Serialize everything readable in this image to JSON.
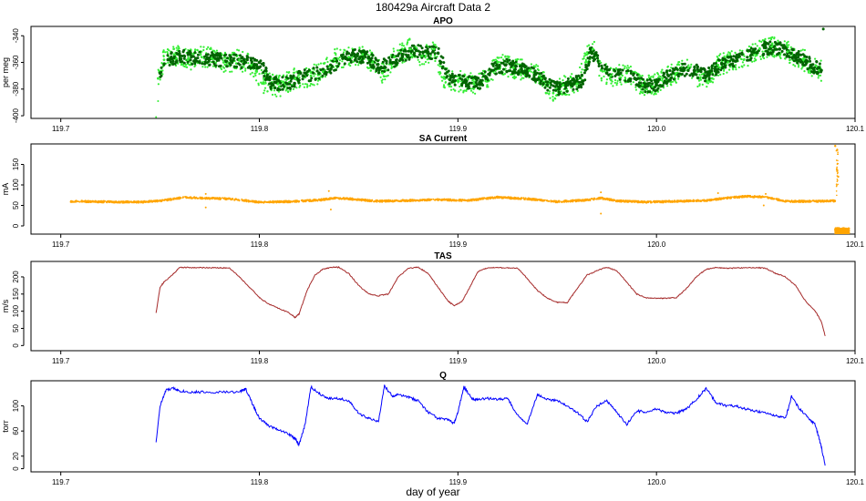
{
  "figure": {
    "title": "180429a   Aircraft Data 2",
    "xlabel": "day of year"
  },
  "colors": {
    "apo_light": "#33ee33",
    "apo_dark": "#006400",
    "sa": "#ffa500",
    "tas": "#a52a2a",
    "q": "#0000ff"
  },
  "chart_data": [
    {
      "type": "scatter",
      "title": "APO",
      "ylabel": "per meg",
      "xlim": [
        119.685,
        120.1
      ],
      "ylim": [
        -402,
        -333
      ],
      "xticks": [
        119.7,
        119.8,
        119.9,
        120.0,
        120.1
      ],
      "xtick_labels": [
        "119.7",
        "119.8",
        "119.9",
        "120.0",
        "120.1"
      ],
      "yticks": [
        -400,
        -380,
        -360,
        -340
      ],
      "ytick_labels": [
        "-400",
        "-380",
        "-360",
        "-340"
      ],
      "series": [
        {
          "role": "high-frequency",
          "x": [
            119.749,
            119.752,
            119.757,
            119.764,
            119.771,
            119.776,
            119.782,
            119.79,
            119.796,
            119.802,
            119.81,
            119.818,
            119.826,
            119.832,
            119.838,
            119.845,
            119.852,
            119.857,
            119.862,
            119.868,
            119.876,
            119.882,
            119.888,
            119.893,
            119.9,
            119.908,
            119.914,
            119.92,
            119.928,
            119.936,
            119.942,
            119.948,
            119.953,
            119.96,
            119.965,
            119.968,
            119.972,
            119.977,
            119.985,
            119.993,
            119.998,
            120.003,
            120.01,
            120.016,
            120.022,
            120.028,
            120.031,
            120.036,
            120.044,
            120.052,
            120.058,
            120.066,
            120.074,
            120.082
          ],
          "y": [
            -372,
            -358,
            -354,
            -358,
            -356,
            -357,
            -360,
            -358,
            -362,
            -375,
            -378,
            -372,
            -370,
            -367,
            -358,
            -356,
            -354,
            -360,
            -368,
            -356,
            -350,
            -355,
            -350,
            -372,
            -374,
            -376,
            -374,
            -360,
            -364,
            -366,
            -372,
            -383,
            -377,
            -376,
            -354,
            -350,
            -366,
            -370,
            -368,
            -377,
            -378,
            -372,
            -368,
            -364,
            -372,
            -372,
            -362,
            -360,
            -358,
            -350,
            -348,
            -352,
            -358,
            -366
          ]
        },
        {
          "role": "flask",
          "x": [
            119.75,
            119.754,
            119.76,
            119.768,
            119.774,
            119.779,
            119.786,
            119.793,
            119.8,
            119.806,
            119.814,
            119.822,
            119.83,
            119.836,
            119.842,
            119.848,
            119.855,
            119.86,
            119.866,
            119.872,
            119.879,
            119.885,
            119.89,
            119.896,
            119.904,
            119.911,
            119.917,
            119.924,
            119.932,
            119.939,
            119.945,
            119.951,
            119.957,
            119.963,
            119.967,
            119.975,
            119.981,
            119.989,
            119.995,
            120.0,
            120.006,
            120.013,
            120.019,
            120.025,
            120.033,
            120.04,
            120.048,
            120.055,
            120.062,
            120.07,
            120.078,
            120.083
          ],
          "y": [
            -368,
            -358,
            -355,
            -357,
            -357,
            -358,
            -359,
            -360,
            -360,
            -376,
            -376,
            -370,
            -368,
            -365,
            -357,
            -355,
            -356,
            -364,
            -360,
            -355,
            -351,
            -353,
            -353,
            -373,
            -375,
            -375,
            -366,
            -362,
            -365,
            -369,
            -377,
            -380,
            -376,
            -374,
            -352,
            -368,
            -369,
            -372,
            -378,
            -377,
            -370,
            -366,
            -366,
            -370,
            -361,
            -359,
            -354,
            -349,
            -350,
            -355,
            -362,
            -366
          ]
        }
      ]
    },
    {
      "type": "scatter",
      "title": "SA Current",
      "ylabel": "mA",
      "xlim": [
        119.685,
        120.1
      ],
      "ylim": [
        -20,
        200
      ],
      "xticks": [
        119.7,
        119.8,
        119.9,
        120.0,
        120.1
      ],
      "xtick_labels": [
        "119.7",
        "119.8",
        "119.9",
        "120.0",
        "120.1"
      ],
      "yticks": [
        0,
        50,
        100,
        150
      ],
      "ytick_labels": [
        "0",
        "50",
        "100",
        "150"
      ],
      "x": [
        119.705,
        119.72,
        119.74,
        119.752,
        119.762,
        119.77,
        119.785,
        119.8,
        119.815,
        119.83,
        119.838,
        119.845,
        119.86,
        119.875,
        119.89,
        119.905,
        119.92,
        119.935,
        119.95,
        119.965,
        119.972,
        119.98,
        119.995,
        120.01,
        120.025,
        120.035,
        120.045,
        120.055,
        120.065,
        120.08,
        120.09
      ],
      "y": [
        60,
        59,
        58,
        62,
        70,
        68,
        66,
        58,
        59,
        63,
        68,
        66,
        60,
        62,
        64,
        62,
        70,
        66,
        59,
        63,
        68,
        61,
        58,
        60,
        62,
        68,
        72,
        70,
        60,
        60,
        61
      ],
      "spike_region": {
        "x": [
          120.09,
          120.097
        ],
        "y": [
          -20,
          -5
        ]
      },
      "high_points": {
        "x": [
          120.09,
          120.091,
          120.0915
        ],
        "y": [
          195,
          185,
          120
        ]
      }
    },
    {
      "type": "line",
      "title": "TAS",
      "ylabel": "m/s",
      "xlim": [
        119.685,
        120.1
      ],
      "ylim": [
        -15,
        245
      ],
      "xticks": [
        119.7,
        119.8,
        119.9,
        120.0,
        120.1
      ],
      "xtick_labels": [
        "119.7",
        "119.8",
        "119.9",
        "120.0",
        "120.1"
      ],
      "yticks": [
        0,
        50,
        100,
        150,
        200
      ],
      "ytick_labels": [
        "0",
        "50",
        "100",
        "150",
        "200"
      ],
      "x": [
        119.748,
        119.75,
        119.752,
        119.756,
        119.76,
        119.765,
        119.77,
        119.775,
        119.78,
        119.785,
        119.79,
        119.795,
        119.8,
        119.805,
        119.81,
        119.815,
        119.818,
        119.82,
        119.824,
        119.828,
        119.832,
        119.836,
        119.84,
        119.845,
        119.85,
        119.855,
        119.86,
        119.865,
        119.87,
        119.875,
        119.88,
        119.885,
        119.89,
        119.895,
        119.898,
        119.902,
        119.906,
        119.91,
        119.915,
        119.92,
        119.925,
        119.93,
        119.935,
        119.94,
        119.945,
        119.95,
        119.955,
        119.96,
        119.965,
        119.97,
        119.975,
        119.98,
        119.985,
        119.99,
        119.995,
        120.0,
        120.005,
        120.01,
        120.015,
        120.02,
        120.025,
        120.03,
        120.035,
        120.04,
        120.045,
        120.05,
        120.055,
        120.06,
        120.065,
        120.07,
        120.075,
        120.08,
        120.083,
        120.085
      ],
      "y": [
        95,
        170,
        185,
        205,
        228,
        227,
        227,
        227,
        226,
        226,
        200,
        170,
        140,
        120,
        108,
        95,
        82,
        92,
        160,
        205,
        222,
        228,
        228,
        210,
        175,
        150,
        145,
        150,
        200,
        225,
        228,
        210,
        170,
        130,
        116,
        128,
        170,
        215,
        227,
        227,
        226,
        226,
        195,
        160,
        138,
        126,
        125,
        165,
        205,
        218,
        228,
        218,
        185,
        150,
        138,
        138,
        138,
        140,
        165,
        200,
        222,
        227,
        225,
        226,
        227,
        227,
        225,
        210,
        200,
        175,
        130,
        100,
        70,
        28
      ]
    },
    {
      "type": "line",
      "title": "Q",
      "ylabel": "torr",
      "xlim": [
        119.685,
        120.1
      ],
      "ylim": [
        -5,
        140
      ],
      "xticks": [
        119.7,
        119.8,
        119.9,
        120.0,
        120.1
      ],
      "xtick_labels": [
        "119.7",
        "119.8",
        "119.9",
        "120.0",
        "120.1"
      ],
      "yticks": [
        0,
        20,
        60,
        100
      ],
      "ytick_labels": [
        "0",
        "20",
        "60",
        "100"
      ],
      "x": [
        119.748,
        119.75,
        119.753,
        119.757,
        119.76,
        119.765,
        119.77,
        119.78,
        119.79,
        119.793,
        119.797,
        119.8,
        119.805,
        119.81,
        119.815,
        119.818,
        119.82,
        119.823,
        119.826,
        119.83,
        119.835,
        119.84,
        119.845,
        119.85,
        119.855,
        119.86,
        119.863,
        119.867,
        119.87,
        119.875,
        119.88,
        119.885,
        119.89,
        119.895,
        119.898,
        119.9,
        119.903,
        119.907,
        119.91,
        119.915,
        119.92,
        119.925,
        119.93,
        119.935,
        119.94,
        119.945,
        119.95,
        119.955,
        119.96,
        119.965,
        119.97,
        119.975,
        119.98,
        119.985,
        119.99,
        119.995,
        120.0,
        120.005,
        120.01,
        120.015,
        120.02,
        120.025,
        120.03,
        120.035,
        120.04,
        120.045,
        120.05,
        120.055,
        120.06,
        120.065,
        120.068,
        120.072,
        120.076,
        120.08,
        120.083,
        120.085
      ],
      "y": [
        42,
        100,
        125,
        128,
        124,
        122,
        122,
        122,
        122,
        128,
        100,
        80,
        68,
        62,
        55,
        48,
        38,
        70,
        130,
        120,
        112,
        112,
        108,
        88,
        80,
        75,
        132,
        115,
        118,
        114,
        108,
        90,
        80,
        78,
        72,
        90,
        130,
        112,
        110,
        112,
        110,
        112,
        85,
        72,
        118,
        110,
        108,
        100,
        90,
        75,
        100,
        108,
        90,
        70,
        92,
        90,
        95,
        90,
        88,
        95,
        110,
        128,
        105,
        100,
        100,
        95,
        92,
        88,
        85,
        80,
        115,
        95,
        82,
        70,
        35,
        5
      ]
    }
  ]
}
